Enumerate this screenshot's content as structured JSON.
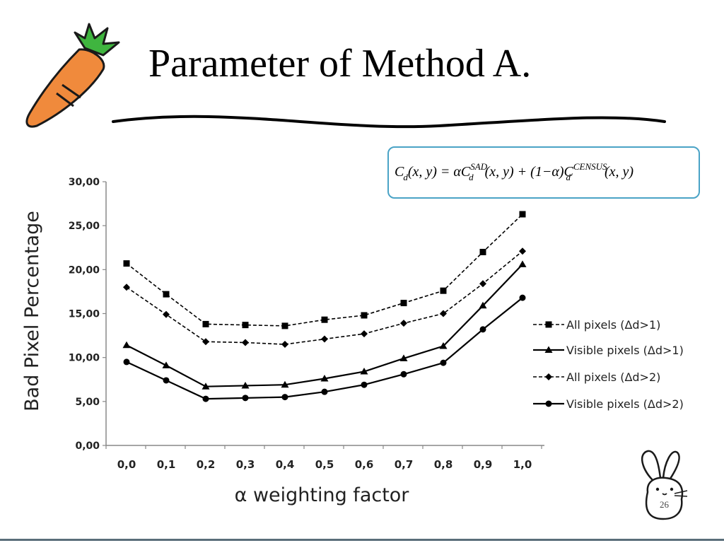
{
  "slide": {
    "title": "Parameter of Method A.",
    "page_number": "26",
    "formula": {
      "lhs": "C",
      "lhs_sub": "d",
      "args": "(x, y)",
      "eq": " = αC",
      "sad_sup": "SAD",
      "sad_sub": "d",
      "mid": "(x, y) + (1−α)C",
      "census_sup": "CENSUS",
      "census_sub": "d",
      "tail": "(x, y)"
    },
    "decorations": {
      "top_left": "carrot-icon",
      "bottom_right": "rabbit-icon"
    },
    "colors": {
      "accent": "#4aa3c6",
      "carrot": "#f08a3c",
      "leaves": "#3fb53f",
      "series": "#000000"
    }
  },
  "chart_data": {
    "type": "line",
    "title": "",
    "xlabel": "α weighting factor",
    "ylabel": "Bad Pixel Percentage",
    "categories": [
      "0,0",
      "0,1",
      "0,2",
      "0,3",
      "0,4",
      "0,5",
      "0,6",
      "0,7",
      "0,8",
      "0,9",
      "1,0"
    ],
    "ylim": [
      0,
      30
    ],
    "yticks": [
      "0,00",
      "5,00",
      "10,00",
      "15,00",
      "20,00",
      "25,00",
      "30,00"
    ],
    "grid": false,
    "legend_position": "right",
    "series": [
      {
        "name": "All pixels (Δd>1)",
        "marker": "square",
        "dash": "dashed",
        "values": [
          20.7,
          17.2,
          13.8,
          13.7,
          13.6,
          14.3,
          14.8,
          16.2,
          17.6,
          22.0,
          26.3
        ]
      },
      {
        "name": "Visible pixels (Δd>1)",
        "marker": "triangle",
        "dash": "solid",
        "values": [
          11.4,
          9.1,
          6.7,
          6.8,
          6.9,
          7.6,
          8.4,
          9.9,
          11.3,
          15.9,
          20.6
        ]
      },
      {
        "name": "All pixels (Δd>2)",
        "marker": "diamond",
        "dash": "dashed",
        "values": [
          18.0,
          14.9,
          11.8,
          11.7,
          11.5,
          12.1,
          12.7,
          13.9,
          15.0,
          18.4,
          22.1
        ]
      },
      {
        "name": "Visible pixels (Δd>2)",
        "marker": "circle",
        "dash": "solid",
        "values": [
          9.5,
          7.4,
          5.3,
          5.4,
          5.5,
          6.1,
          6.9,
          8.1,
          9.4,
          13.2,
          16.8
        ]
      }
    ]
  }
}
